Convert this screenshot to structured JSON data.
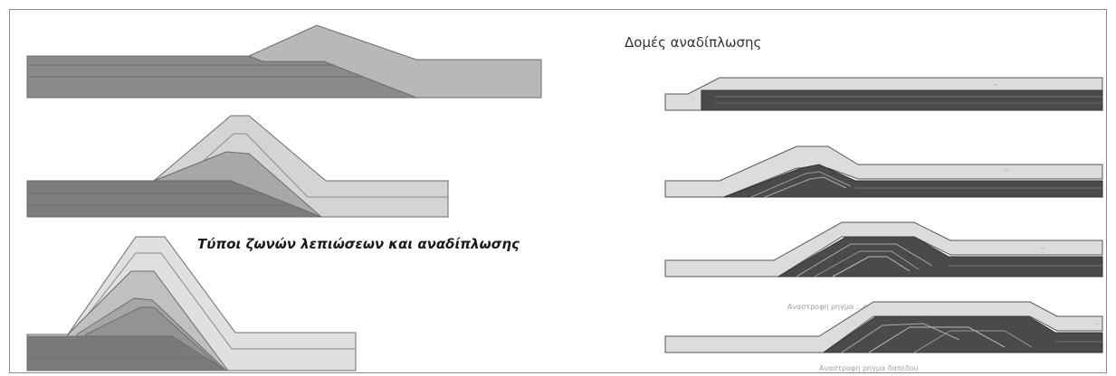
{
  "titles": {
    "zones": "Τύποι ζωνών λεπιώσεων και αναδίπλωσης",
    "fold_structures": "Δομές αναδίπλωσης"
  },
  "captions": {
    "stage3": "Αναστροφη ρηγμα ...ρας",
    "stage4": "Αναστροφη ρηγμα δαπεδου"
  },
  "colors": {
    "light": "#dcdcdc",
    "mid_light": "#c4c4c4",
    "mid": "#a3a3a3",
    "dark": "#7a7a7a",
    "darkest": "#555555",
    "outline": "#6b6b6b"
  }
}
